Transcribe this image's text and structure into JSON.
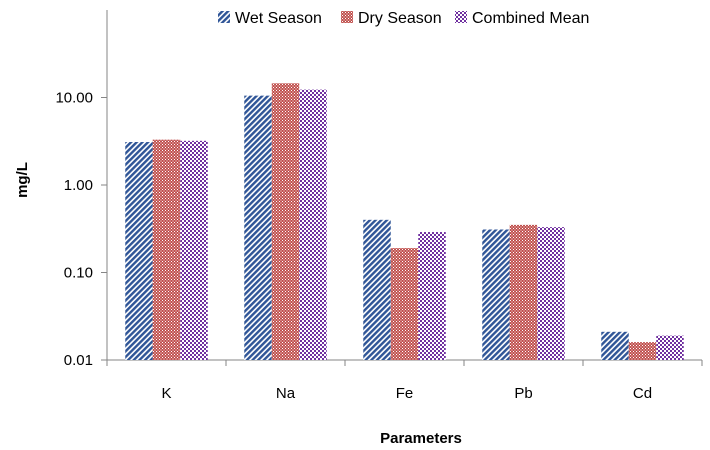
{
  "chart_data": {
    "type": "bar",
    "title": "",
    "xlabel": "Parameters",
    "ylabel": "mg/L",
    "yscale": "log",
    "ylim": [
      0.01,
      100
    ],
    "yticks": [
      {
        "value": 0.01,
        "label": "0.01"
      },
      {
        "value": 0.1,
        "label": "0.10"
      },
      {
        "value": 1,
        "label": "1.00"
      },
      {
        "value": 10,
        "label": "10.00"
      }
    ],
    "categories": [
      "K",
      "Na",
      "Fe",
      "Pb",
      "Cd"
    ],
    "series": [
      {
        "name": "Wet Season",
        "color": "#2f5597",
        "pattern": "diagonal-stripes",
        "values": [
          3.1,
          10.5,
          0.4,
          0.31,
          0.021
        ]
      },
      {
        "name": "Dry Season",
        "color": "#c0504d",
        "pattern": "dots",
        "values": [
          3.3,
          14.5,
          0.19,
          0.35,
          0.016
        ]
      },
      {
        "name": "Combined Mean",
        "color": "#7030a0",
        "pattern": "checker",
        "values": [
          3.2,
          12.3,
          0.29,
          0.33,
          0.019
        ]
      }
    ],
    "legend_position": "top-right",
    "grid": false
  }
}
